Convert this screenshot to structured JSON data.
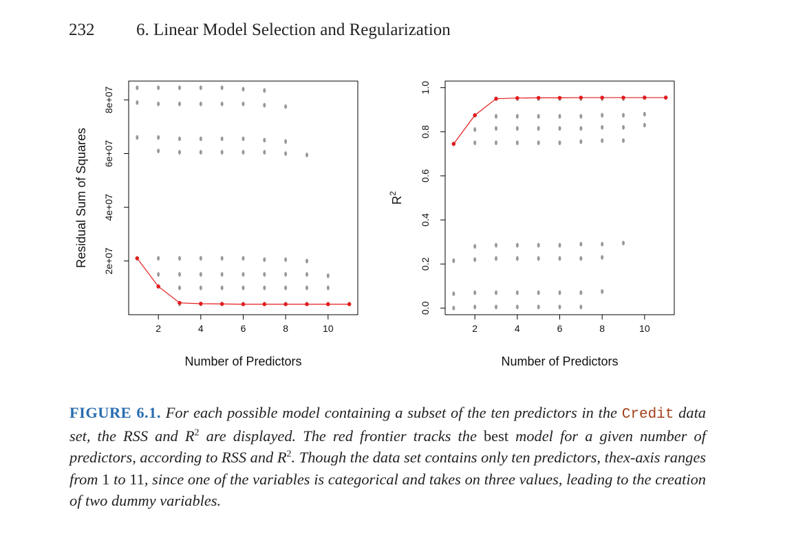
{
  "header": {
    "page_number": "232",
    "chapter_title": "6. Linear Model Selection and Regularization"
  },
  "chart_data": [
    {
      "type": "scatter",
      "xlabel": "Number of Predictors",
      "ylabel": "Residual Sum of Squares",
      "xlim": [
        0.6,
        11.4
      ],
      "ylim": [
        0,
        87000000
      ],
      "x_ticks": [
        2,
        4,
        6,
        8,
        10
      ],
      "y_ticks": [
        20000000,
        40000000,
        60000000,
        80000000
      ],
      "y_tick_labels": [
        "2e+07",
        "4e+07",
        "6e+07",
        "8e+07"
      ],
      "colors": {
        "points": "#999999",
        "frontier": "#e41a1c"
      },
      "points": [
        {
          "x": 1,
          "y": [
            84500000,
            79000000,
            66000000,
            21000000
          ]
        },
        {
          "x": 2,
          "y": [
            84500000,
            78500000,
            66000000,
            61000000,
            21000000,
            15000000,
            10500000
          ]
        },
        {
          "x": 3,
          "y": [
            84500000,
            78500000,
            65500000,
            60500000,
            21000000,
            15000000,
            10000000,
            4000000
          ]
        },
        {
          "x": 4,
          "y": [
            84500000,
            78500000,
            65500000,
            60500000,
            21000000,
            15000000,
            10000000,
            4000000
          ]
        },
        {
          "x": 5,
          "y": [
            84500000,
            78500000,
            65500000,
            60500000,
            21000000,
            15000000,
            10000000,
            4000000
          ]
        },
        {
          "x": 6,
          "y": [
            84000000,
            78500000,
            65500000,
            60500000,
            21000000,
            15000000,
            10000000,
            4000000
          ]
        },
        {
          "x": 7,
          "y": [
            83500000,
            78000000,
            65000000,
            60500000,
            20500000,
            15000000,
            10000000,
            4000000
          ]
        },
        {
          "x": 8,
          "y": [
            77500000,
            64500000,
            60000000,
            20500000,
            15000000,
            10000000,
            4000000
          ]
        },
        {
          "x": 9,
          "y": [
            59500000,
            20000000,
            15000000,
            10000000,
            4000000
          ]
        },
        {
          "x": 10,
          "y": [
            14500000,
            10000000,
            4000000
          ]
        },
        {
          "x": 11,
          "y": [
            4000000
          ]
        }
      ],
      "frontier": {
        "x": [
          1,
          2,
          3,
          4,
          5,
          6,
          7,
          8,
          9,
          10,
          11
        ],
        "y": [
          21000000,
          10500000,
          4400000,
          4100000,
          4000000,
          3900000,
          3900000,
          3900000,
          3900000,
          3900000,
          3900000
        ]
      }
    },
    {
      "type": "scatter",
      "xlabel": "Number of Predictors",
      "ylabel": "R",
      "ylabel_sup": "2",
      "xlim": [
        0.6,
        11.4
      ],
      "ylim": [
        -0.03,
        1.03
      ],
      "x_ticks": [
        2,
        4,
        6,
        8,
        10
      ],
      "y_ticks": [
        0.0,
        0.2,
        0.4,
        0.6,
        0.8,
        1.0
      ],
      "y_tick_labels": [
        "0.0",
        "0.2",
        "0.4",
        "0.6",
        "0.8",
        "1.0"
      ],
      "colors": {
        "points": "#999999",
        "frontier": "#e41a1c"
      },
      "points": [
        {
          "x": 1,
          "y": [
            0.745,
            0.215,
            0.065,
            0.0
          ]
        },
        {
          "x": 2,
          "y": [
            0.875,
            0.81,
            0.75,
            0.28,
            0.22,
            0.07,
            0.005
          ]
        },
        {
          "x": 3,
          "y": [
            0.95,
            0.87,
            0.815,
            0.75,
            0.285,
            0.225,
            0.07,
            0.005
          ]
        },
        {
          "x": 4,
          "y": [
            0.95,
            0.87,
            0.815,
            0.75,
            0.285,
            0.225,
            0.07,
            0.005
          ]
        },
        {
          "x": 5,
          "y": [
            0.95,
            0.87,
            0.815,
            0.75,
            0.285,
            0.225,
            0.07,
            0.005
          ]
        },
        {
          "x": 6,
          "y": [
            0.95,
            0.87,
            0.815,
            0.75,
            0.285,
            0.225,
            0.07,
            0.005
          ]
        },
        {
          "x": 7,
          "y": [
            0.95,
            0.87,
            0.815,
            0.755,
            0.29,
            0.225,
            0.07,
            0.005
          ]
        },
        {
          "x": 8,
          "y": [
            0.95,
            0.875,
            0.82,
            0.76,
            0.29,
            0.23,
            0.075
          ]
        },
        {
          "x": 9,
          "y": [
            0.95,
            0.875,
            0.82,
            0.76,
            0.295
          ]
        },
        {
          "x": 10,
          "y": [
            0.955,
            0.88,
            0.83
          ]
        },
        {
          "x": 11,
          "y": [
            0.955
          ]
        }
      ],
      "frontier": {
        "x": [
          1,
          2,
          3,
          4,
          5,
          6,
          7,
          8,
          9,
          10,
          11
        ],
        "y": [
          0.745,
          0.875,
          0.95,
          0.953,
          0.954,
          0.954,
          0.955,
          0.955,
          0.955,
          0.955,
          0.955
        ]
      }
    }
  ],
  "caption": {
    "label": "FIGURE 6.1.",
    "text1": "For each possible model containing a subset of the ten predictors in the",
    "code": "Credit",
    "text2": "data set, the RSS and",
    "r": "R",
    "sup": "2",
    "text3": "are displayed. The red frontier tracks the",
    "upright_best": "best",
    "text4": "model for a given number of predictors, according to RSS and",
    "text5": ". Though the data set contains only ten predictors, the",
    "x_var": "x",
    "text6": "-axis ranges from",
    "num1": "1",
    "text7": "to",
    "num2": "11",
    "text8": ", since one of the variables is categorical and takes on three values, leading to the creation of two dummy variables."
  }
}
